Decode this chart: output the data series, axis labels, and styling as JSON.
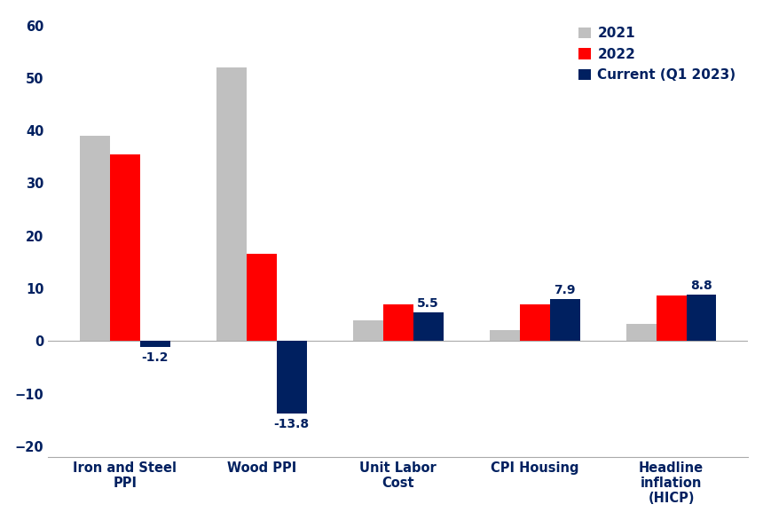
{
  "categories": [
    "Iron and Steel\nPPI",
    "Wood PPI",
    "Unit Labor\nCost",
    "CPI Housing",
    "Headline\ninflation\n(HICP)"
  ],
  "series": {
    "2021": [
      39.0,
      52.0,
      4.0,
      2.0,
      3.2
    ],
    "2022": [
      35.5,
      16.5,
      7.0,
      7.0,
      8.7
    ],
    "Current (Q1 2023)": [
      -1.2,
      -13.8,
      5.5,
      7.9,
      8.8
    ]
  },
  "colors": {
    "2021": "#c0c0c0",
    "2022": "#ff0000",
    "Current (Q1 2023)": "#002060"
  },
  "text_color": "#002060",
  "annotation_vals": [
    -1.2,
    -13.8,
    5.5,
    7.9,
    8.8
  ],
  "annotation_labels": [
    "-1.2",
    "-13.8",
    "5.5",
    "7.9",
    "8.8"
  ],
  "ylim": [
    -22,
    62
  ],
  "yticks": [
    -20,
    -10,
    0,
    10,
    20,
    30,
    40,
    50,
    60
  ],
  "legend_labels": [
    "2021",
    "2022",
    "Current (Q1 2023)"
  ],
  "bar_width": 0.22,
  "background_color": "#ffffff"
}
